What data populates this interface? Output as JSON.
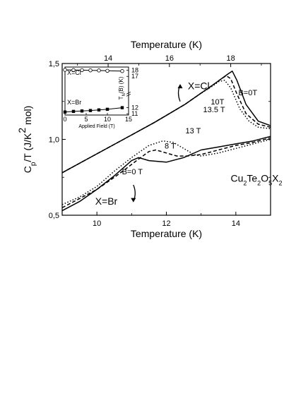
{
  "chart_data": [
    {
      "type": "line",
      "xlabel": "Temperature (K)",
      "ylabel_parts": [
        "C",
        "p",
        "/T (J/K",
        "2",
        " mol)"
      ],
      "top_xlabel": "Temperature (K)",
      "xlim": [
        9,
        15
      ],
      "ylim": [
        0.5,
        1.5
      ],
      "top_xlim": [
        12.5,
        19.3
      ],
      "x_ticks": [
        10,
        12,
        14
      ],
      "x_tick_labels": [
        "10",
        "12",
        "14"
      ],
      "y_ticks": [
        0.5,
        1.0,
        1.5
      ],
      "y_tick_labels": [
        "0,5",
        "1,0",
        "1,5"
      ],
      "top_x_ticks": [
        14,
        16,
        18
      ],
      "top_x_tick_labels": [
        "14",
        "16",
        "18"
      ],
      "compound_parts": [
        "Cu",
        "2",
        "Te",
        "2",
        "O",
        "5",
        "X",
        "2"
      ],
      "groups": {
        "cl": {
          "label": "X=Cl",
          "axis": "top",
          "series": [
            {
              "name": "B=0T",
              "style": "solid",
              "x": [
                12.5,
                13.5,
                14.5,
                15.5,
                16.5,
                17.0,
                17.5,
                17.7,
                17.9,
                18.05,
                18.2,
                18.5,
                18.9,
                19.3
              ],
              "y": [
                0.78,
                0.89,
                1.0,
                1.11,
                1.23,
                1.3,
                1.37,
                1.4,
                1.43,
                1.45,
                1.39,
                1.23,
                1.12,
                1.09
              ]
            },
            {
              "name": "10T",
              "style": "dashed",
              "x": [
                12.5,
                13.5,
                14.5,
                15.5,
                16.5,
                17.0,
                17.5,
                17.7,
                17.85,
                18.0,
                18.2,
                18.5,
                18.9,
                19.3
              ],
              "y": [
                0.78,
                0.89,
                1.0,
                1.11,
                1.23,
                1.3,
                1.37,
                1.4,
                1.42,
                1.4,
                1.3,
                1.17,
                1.1,
                1.08
              ]
            },
            {
              "name": "13.5 T",
              "style": "dotted",
              "x": [
                12.5,
                13.5,
                14.5,
                15.5,
                16.5,
                17.0,
                17.4,
                17.6,
                17.8,
                18.0,
                18.3,
                18.6,
                18.9,
                19.3
              ],
              "y": [
                0.78,
                0.89,
                1.0,
                1.11,
                1.23,
                1.3,
                1.35,
                1.38,
                1.39,
                1.34,
                1.2,
                1.12,
                1.08,
                1.07
              ]
            }
          ]
        },
        "br": {
          "label": "X=Br",
          "axis": "bottom",
          "series": [
            {
              "name": "B=0 T",
              "style": "solid",
              "x": [
                9.0,
                9.5,
                10.0,
                10.5,
                10.8,
                11.0,
                11.2,
                11.5,
                12.0,
                12.5,
                13.0,
                13.5,
                14.0,
                14.5,
                15.0
              ],
              "y": [
                0.53,
                0.59,
                0.67,
                0.76,
                0.82,
                0.86,
                0.88,
                0.86,
                0.85,
                0.88,
                0.93,
                0.95,
                0.97,
                0.99,
                1.02
              ]
            },
            {
              "name": "8 T",
              "style": "dashed",
              "x": [
                9.0,
                9.5,
                10.0,
                10.5,
                10.8,
                11.2,
                11.5,
                11.7,
                12.0,
                12.3,
                12.6,
                13.0,
                13.5,
                14.0,
                14.5,
                15.0
              ],
              "y": [
                0.55,
                0.61,
                0.67,
                0.75,
                0.8,
                0.87,
                0.92,
                0.93,
                0.91,
                0.89,
                0.89,
                0.9,
                0.93,
                0.96,
                0.98,
                1.01
              ]
            },
            {
              "name": "13 T",
              "style": "dotted",
              "x": [
                9.0,
                9.5,
                10.0,
                10.5,
                11.0,
                11.5,
                11.9,
                12.2,
                12.5,
                12.8,
                13.0,
                13.5,
                14.0,
                14.5,
                15.0
              ],
              "y": [
                0.57,
                0.62,
                0.69,
                0.79,
                0.88,
                0.96,
                0.99,
                0.98,
                0.94,
                0.9,
                0.89,
                0.91,
                0.94,
                0.97,
                1.0
              ]
            }
          ]
        }
      },
      "annotations": [
        "X=Cl",
        "X=Br",
        "B=0T",
        "10T",
        "13.5 T",
        "13 T",
        "8 T",
        "B=0 T"
      ]
    },
    {
      "type": "line",
      "panel": "inset",
      "xlabel": "Applied Field (T)",
      "ylabel_parts": [
        "T",
        "N",
        "(B) (K)"
      ],
      "xlim": [
        0,
        15
      ],
      "ylim": [
        10.8,
        18.5
      ],
      "x_ticks": [
        0,
        5,
        10,
        15
      ],
      "x_tick_labels": [
        "0",
        "5",
        "10",
        "15"
      ],
      "y_ticks": [
        11,
        12,
        17,
        18
      ],
      "y_tick_labels": [
        "11",
        "12",
        "17",
        "18"
      ],
      "series": [
        {
          "name": "X=Cl",
          "marker": "open-circle",
          "x": [
            0,
            2,
            4,
            6,
            8,
            10,
            13.5
          ],
          "y": [
            18.05,
            18.02,
            18.0,
            17.97,
            17.95,
            17.9,
            17.85
          ]
        },
        {
          "name": "X=Br",
          "marker": "filled-square",
          "x": [
            0,
            2,
            4,
            6,
            8,
            10,
            13.5
          ],
          "y": [
            11.28,
            11.38,
            11.45,
            11.52,
            11.62,
            11.72,
            11.98
          ]
        }
      ]
    }
  ]
}
